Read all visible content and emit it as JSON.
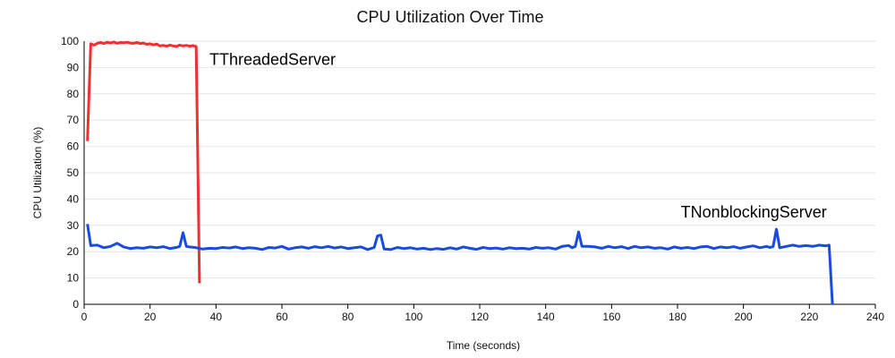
{
  "chart_data": {
    "type": "line",
    "title": "CPU Utilization Over Time",
    "xlabel": "Time (seconds)",
    "ylabel": "CPU Utilization (%)",
    "xlim": [
      0,
      240
    ],
    "ylim": [
      0,
      100
    ],
    "xticks": [
      0,
      20,
      40,
      60,
      80,
      100,
      120,
      140,
      160,
      180,
      200,
      220,
      240
    ],
    "yticks": [
      0,
      10,
      20,
      30,
      40,
      50,
      60,
      70,
      80,
      90,
      100
    ],
    "grid": true,
    "series": [
      {
        "name": "TThreadedServer",
        "color": "#f03030",
        "points": [
          [
            1,
            62
          ],
          [
            2,
            99
          ],
          [
            3,
            98.5
          ],
          [
            4,
            99.2
          ],
          [
            5,
            99.5
          ],
          [
            6,
            99.1
          ],
          [
            7,
            99.6
          ],
          [
            8,
            99.3
          ],
          [
            9,
            99.7
          ],
          [
            10,
            99.2
          ],
          [
            11,
            99.5
          ],
          [
            12,
            99.4
          ],
          [
            13,
            99.6
          ],
          [
            14,
            99.3
          ],
          [
            15,
            99.2
          ],
          [
            16,
            99.5
          ],
          [
            17,
            99.1
          ],
          [
            18,
            99.3
          ],
          [
            19,
            98.8
          ],
          [
            20,
            99.0
          ],
          [
            21,
            98.6
          ],
          [
            22,
            98.9
          ],
          [
            23,
            98.2
          ],
          [
            24,
            98.4
          ],
          [
            25,
            98.1
          ],
          [
            26,
            98.5
          ],
          [
            27,
            98.2
          ],
          [
            28,
            98.0
          ],
          [
            29,
            98.5
          ],
          [
            30,
            98.2
          ],
          [
            31,
            98.4
          ],
          [
            32,
            98.1
          ],
          [
            33,
            98.3
          ],
          [
            34,
            98.0
          ],
          [
            35,
            8
          ]
        ],
        "label": "TThreadedServer"
      },
      {
        "name": "TNonblockingServer",
        "color": "#1a4be0",
        "points": [
          [
            1,
            30.5
          ],
          [
            2,
            22.3
          ],
          [
            4,
            22.5
          ],
          [
            6,
            21.5
          ],
          [
            8,
            22.0
          ],
          [
            10,
            23.2
          ],
          [
            12,
            21.8
          ],
          [
            14,
            21.2
          ],
          [
            16,
            21.5
          ],
          [
            18,
            21.3
          ],
          [
            20,
            21.8
          ],
          [
            22,
            21.5
          ],
          [
            24,
            21.9
          ],
          [
            26,
            21.2
          ],
          [
            28,
            21.6
          ],
          [
            29,
            22.0
          ],
          [
            30,
            27.2
          ],
          [
            31,
            22.0
          ],
          [
            32,
            21.8
          ],
          [
            34,
            21.5
          ],
          [
            36,
            21.0
          ],
          [
            38,
            21.3
          ],
          [
            40,
            21.2
          ],
          [
            42,
            21.6
          ],
          [
            44,
            21.4
          ],
          [
            46,
            21.8
          ],
          [
            48,
            21.2
          ],
          [
            50,
            21.5
          ],
          [
            52,
            21.3
          ],
          [
            54,
            20.8
          ],
          [
            56,
            21.6
          ],
          [
            58,
            21.4
          ],
          [
            60,
            22.0
          ],
          [
            62,
            21.0
          ],
          [
            64,
            21.5
          ],
          [
            66,
            21.8
          ],
          [
            68,
            21.3
          ],
          [
            70,
            21.9
          ],
          [
            72,
            21.5
          ],
          [
            74,
            22.0
          ],
          [
            76,
            21.4
          ],
          [
            78,
            21.8
          ],
          [
            80,
            21.2
          ],
          [
            82,
            21.5
          ],
          [
            84,
            21.8
          ],
          [
            86,
            20.8
          ],
          [
            88,
            21.6
          ],
          [
            89,
            26.0
          ],
          [
            90,
            26.3
          ],
          [
            91,
            21.0
          ],
          [
            93,
            20.8
          ],
          [
            95,
            21.6
          ],
          [
            97,
            21.2
          ],
          [
            99,
            21.5
          ],
          [
            101,
            21.0
          ],
          [
            103,
            21.3
          ],
          [
            105,
            20.8
          ],
          [
            107,
            21.2
          ],
          [
            109,
            20.9
          ],
          [
            111,
            21.5
          ],
          [
            113,
            21.0
          ],
          [
            115,
            21.8
          ],
          [
            117,
            21.3
          ],
          [
            119,
            20.9
          ],
          [
            121,
            21.6
          ],
          [
            123,
            21.2
          ],
          [
            125,
            21.4
          ],
          [
            127,
            21.0
          ],
          [
            129,
            21.5
          ],
          [
            131,
            21.2
          ],
          [
            133,
            21.3
          ],
          [
            135,
            21.0
          ],
          [
            137,
            21.6
          ],
          [
            139,
            21.3
          ],
          [
            141,
            21.5
          ],
          [
            143,
            21.0
          ],
          [
            145,
            22.0
          ],
          [
            147,
            22.3
          ],
          [
            148,
            21.5
          ],
          [
            149,
            22.0
          ],
          [
            150,
            27.5
          ],
          [
            151,
            22.0
          ],
          [
            153,
            22.0
          ],
          [
            155,
            21.8
          ],
          [
            157,
            21.3
          ],
          [
            159,
            22.0
          ],
          [
            161,
            21.5
          ],
          [
            163,
            21.9
          ],
          [
            165,
            21.2
          ],
          [
            167,
            22.0
          ],
          [
            169,
            21.5
          ],
          [
            171,
            21.8
          ],
          [
            173,
            21.3
          ],
          [
            175,
            21.5
          ],
          [
            177,
            21.0
          ],
          [
            179,
            21.8
          ],
          [
            181,
            21.3
          ],
          [
            183,
            21.6
          ],
          [
            185,
            21.2
          ],
          [
            187,
            21.8
          ],
          [
            189,
            22.0
          ],
          [
            191,
            21.2
          ],
          [
            193,
            21.8
          ],
          [
            195,
            21.5
          ],
          [
            197,
            21.9
          ],
          [
            199,
            21.3
          ],
          [
            201,
            21.8
          ],
          [
            203,
            22.2
          ],
          [
            205,
            21.5
          ],
          [
            207,
            22.0
          ],
          [
            208,
            21.6
          ],
          [
            209,
            21.9
          ],
          [
            210,
            28.5
          ],
          [
            211,
            21.5
          ],
          [
            213,
            22.0
          ],
          [
            215,
            22.5
          ],
          [
            217,
            22.0
          ],
          [
            219,
            22.3
          ],
          [
            221,
            22.0
          ],
          [
            223,
            22.5
          ],
          [
            225,
            22.2
          ],
          [
            226,
            22.5
          ],
          [
            227,
            0
          ]
        ],
        "label": "TNonblockingServer"
      }
    ]
  }
}
